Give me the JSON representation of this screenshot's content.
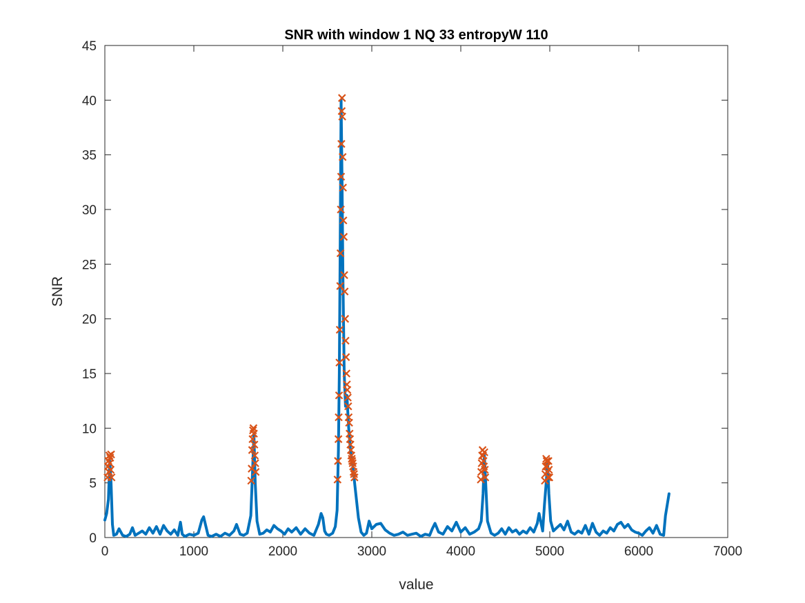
{
  "chart_data": {
    "type": "line",
    "title": "SNR with window 1  NQ 33  entropyW 110",
    "xlabel": "value",
    "ylabel": "SNR",
    "xlim": [
      0,
      7000
    ],
    "ylim": [
      0,
      45
    ],
    "xticks": [
      0,
      1000,
      2000,
      3000,
      4000,
      5000,
      6000,
      7000
    ],
    "yticks": [
      0,
      5,
      10,
      15,
      20,
      25,
      30,
      35,
      40,
      45
    ],
    "xtick_labels": [
      "0",
      "1000",
      "2000",
      "3000",
      "4000",
      "5000",
      "6000",
      "7000"
    ],
    "ytick_labels": [
      "0",
      "5",
      "10",
      "15",
      "20",
      "25",
      "30",
      "35",
      "40",
      "45"
    ],
    "grid": false,
    "box": true,
    "colors": {
      "line": "#0072BD",
      "markers": "#D95319",
      "axes": "#262626"
    },
    "series": [
      {
        "kind": "line",
        "x": [
          0,
          20,
          40,
          55,
          70,
          85,
          100,
          130,
          160,
          200,
          240,
          280,
          310,
          340,
          380,
          420,
          460,
          500,
          540,
          580,
          620,
          660,
          700,
          740,
          780,
          820,
          850,
          870,
          900,
          950,
          1000,
          1050,
          1090,
          1110,
          1130,
          1160,
          1200,
          1250,
          1300,
          1350,
          1400,
          1450,
          1480,
          1520,
          1560,
          1600,
          1640,
          1660,
          1675,
          1690,
          1710,
          1740,
          1780,
          1820,
          1860,
          1900,
          1940,
          1980,
          2020,
          2060,
          2100,
          2150,
          2200,
          2250,
          2300,
          2350,
          2400,
          2430,
          2450,
          2470,
          2490,
          2520,
          2560,
          2590,
          2610,
          2625,
          2635,
          2645,
          2655,
          2665,
          2675,
          2690,
          2705,
          2720,
          2740,
          2760,
          2780,
          2800,
          2820,
          2850,
          2880,
          2910,
          2940,
          2970,
          3000,
          3050,
          3100,
          3150,
          3200,
          3250,
          3300,
          3350,
          3400,
          3450,
          3500,
          3550,
          3600,
          3650,
          3680,
          3710,
          3750,
          3800,
          3850,
          3900,
          3950,
          4000,
          4050,
          4100,
          4150,
          4200,
          4230,
          4250,
          4265,
          4280,
          4300,
          4340,
          4380,
          4420,
          4460,
          4500,
          4540,
          4580,
          4620,
          4660,
          4700,
          4740,
          4780,
          4820,
          4860,
          4880,
          4900,
          4920,
          4940,
          4960,
          4975,
          4990,
          5010,
          5040,
          5080,
          5120,
          5160,
          5200,
          5240,
          5280,
          5320,
          5360,
          5400,
          5440,
          5480,
          5520,
          5560,
          5600,
          5640,
          5680,
          5720,
          5760,
          5800,
          5840,
          5880,
          5920,
          5960,
          6000,
          6040,
          6080,
          6120,
          6160,
          6200,
          6240,
          6280,
          6300,
          6320,
          6340
        ],
        "y": [
          1.6,
          2.2,
          3.5,
          7.0,
          5.0,
          1.2,
          0.2,
          0.3,
          0.8,
          0.2,
          0.1,
          0.3,
          0.9,
          0.2,
          0.4,
          0.6,
          0.3,
          0.9,
          0.4,
          1.0,
          0.3,
          1.1,
          0.6,
          0.3,
          0.7,
          0.2,
          1.4,
          0.3,
          0.1,
          0.3,
          0.2,
          0.4,
          1.6,
          1.9,
          1.2,
          0.2,
          0.1,
          0.3,
          0.1,
          0.4,
          0.2,
          0.6,
          1.2,
          0.3,
          0.2,
          0.4,
          2.0,
          6.0,
          9.5,
          5.0,
          1.5,
          0.3,
          0.4,
          0.7,
          0.5,
          1.1,
          0.8,
          0.6,
          0.3,
          0.8,
          0.5,
          0.9,
          0.3,
          0.8,
          0.4,
          0.2,
          1.2,
          2.2,
          1.8,
          0.6,
          0.3,
          0.2,
          0.4,
          1.0,
          2.5,
          8.0,
          15.0,
          27.0,
          40.0,
          33.0,
          24.0,
          15.0,
          12.0,
          13.0,
          10.0,
          8.0,
          7.0,
          5.5,
          4.0,
          1.8,
          0.5,
          0.2,
          0.4,
          1.5,
          0.8,
          1.2,
          1.3,
          0.7,
          0.4,
          0.2,
          0.3,
          0.5,
          0.2,
          0.3,
          0.4,
          0.1,
          0.3,
          0.2,
          0.8,
          1.3,
          0.5,
          0.3,
          1.0,
          0.6,
          1.4,
          0.5,
          0.9,
          0.3,
          0.5,
          0.8,
          1.5,
          4.0,
          7.5,
          5.0,
          1.5,
          0.4,
          0.2,
          0.4,
          0.8,
          0.3,
          0.9,
          0.5,
          0.7,
          0.3,
          0.6,
          0.4,
          0.9,
          0.5,
          1.3,
          2.2,
          1.4,
          0.6,
          3.0,
          5.0,
          7.0,
          4.0,
          1.5,
          0.6,
          0.9,
          1.2,
          0.7,
          1.5,
          0.5,
          0.3,
          0.6,
          0.4,
          1.1,
          0.3,
          1.3,
          0.5,
          0.2,
          0.6,
          0.4,
          0.9,
          0.6,
          1.2,
          1.4,
          0.9,
          1.2,
          0.7,
          0.5,
          0.4,
          0.2,
          0.6,
          0.9,
          0.4,
          1.1,
          0.3,
          0.2,
          2.0,
          3.0,
          4.0
        ]
      },
      {
        "kind": "markers",
        "marker": "x",
        "x": [
          30,
          35,
          40,
          45,
          50,
          55,
          60,
          65,
          70,
          75,
          1645,
          1650,
          1655,
          1660,
          1665,
          1670,
          1675,
          1680,
          1685,
          1690,
          1695,
          2615,
          2620,
          2625,
          2628,
          2632,
          2636,
          2640,
          2645,
          2648,
          2652,
          2655,
          2658,
          2662,
          2665,
          2668,
          2672,
          2676,
          2680,
          2685,
          2690,
          2695,
          2700,
          2705,
          2710,
          2715,
          2720,
          2725,
          2730,
          2735,
          2740,
          2745,
          2750,
          2755,
          2760,
          2765,
          2770,
          2775,
          2780,
          2785,
          2790,
          2795,
          2800,
          2805,
          4225,
          4230,
          4235,
          4240,
          4245,
          4250,
          4255,
          4260,
          4265,
          4270,
          4275,
          4945,
          4950,
          4955,
          4960,
          4965,
          4970,
          4975,
          4980,
          4985,
          4990,
          4995
        ],
        "y": [
          5.5,
          6.5,
          7.0,
          6.0,
          7.5,
          6.8,
          7.3,
          6.2,
          7.6,
          5.5,
          5.2,
          6.3,
          8.0,
          9.0,
          9.8,
          10.0,
          9.5,
          8.5,
          7.5,
          6.8,
          6.0,
          5.3,
          7.0,
          9.0,
          11.0,
          13.0,
          16.0,
          19.0,
          23.0,
          26.0,
          30.0,
          33.0,
          36.0,
          39.0,
          40.2,
          38.5,
          34.8,
          32.0,
          29.0,
          27.5,
          24.0,
          22.5,
          20.0,
          18.0,
          16.5,
          15.0,
          14.0,
          13.5,
          12.8,
          12.0,
          11.0,
          10.5,
          9.5,
          9.0,
          8.5,
          8.0,
          7.5,
          7.2,
          7.0,
          6.8,
          6.5,
          6.0,
          5.8,
          5.5,
          5.3,
          6.0,
          6.8,
          7.5,
          8.0,
          7.5,
          7.0,
          6.5,
          7.8,
          6.2,
          5.5,
          5.2,
          5.8,
          6.5,
          7.2,
          7.0,
          6.5,
          6.0,
          5.5,
          7.0,
          6.2,
          5.5
        ]
      }
    ]
  }
}
